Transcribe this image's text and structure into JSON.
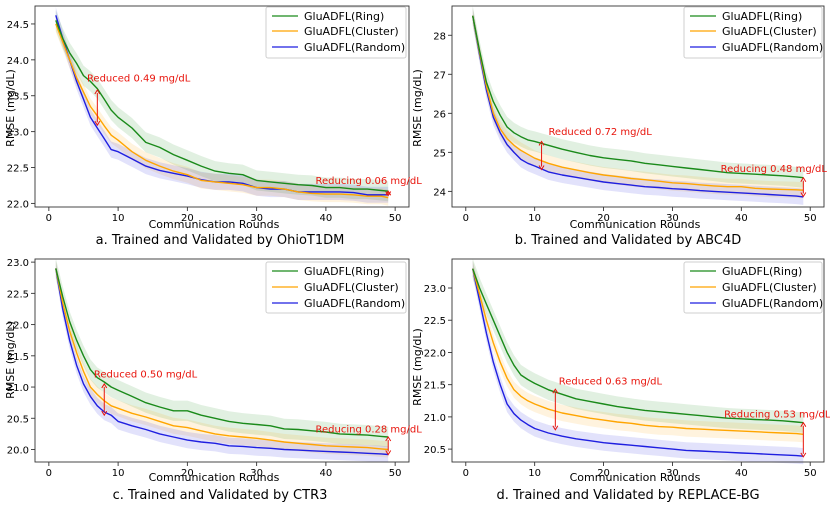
{
  "figure": {
    "x_label": "Communication Rounds",
    "y_label": "RMSE (mg/dL)"
  },
  "legend": {
    "ring": "GluADFL(Ring)",
    "cluster": "GluADFL(Cluster)",
    "random": "GluADFL(Random)"
  },
  "colors": {
    "ring": "#1a8a1a",
    "cluster": "#ffa500",
    "random": "#1f1fe0",
    "annotation": "#e8140c",
    "frame": "#333333"
  },
  "chart_data": [
    {
      "type": "line",
      "title": "a. Trained and Validated by OhioT1DM",
      "xlabel": "Communication Rounds",
      "ylabel": "RMSE (mg/dL)",
      "xlim": [
        -2,
        52
      ],
      "ylim": [
        21.95,
        24.75
      ],
      "xticks": [
        0,
        10,
        20,
        30,
        40,
        50
      ],
      "yticks": [
        22.0,
        22.5,
        23.0,
        23.5,
        24.0,
        24.5
      ],
      "ytick_labels": [
        "22.0",
        "22.5",
        "23.0",
        "23.5",
        "24.0",
        "24.5"
      ],
      "legend_position": "top-right",
      "series": [
        {
          "name": "GluADFL(Ring)",
          "x": [
            1,
            2,
            3,
            4,
            5,
            6,
            7,
            8,
            9,
            10,
            12,
            14,
            16,
            18,
            20,
            22,
            24,
            26,
            28,
            30,
            32,
            34,
            36,
            38,
            40,
            42,
            44,
            46,
            48,
            49
          ],
          "y": [
            24.55,
            24.3,
            24.1,
            23.95,
            23.78,
            23.7,
            23.6,
            23.45,
            23.3,
            23.2,
            23.05,
            22.85,
            22.78,
            22.68,
            22.6,
            22.52,
            22.45,
            22.42,
            22.4,
            22.32,
            22.3,
            22.28,
            22.26,
            22.25,
            22.22,
            22.22,
            22.2,
            22.2,
            22.18,
            22.17
          ]
        },
        {
          "name": "GluADFL(Cluster)",
          "x": [
            1,
            2,
            3,
            4,
            5,
            6,
            7,
            8,
            9,
            10,
            12,
            14,
            16,
            18,
            20,
            22,
            24,
            26,
            28,
            30,
            32,
            34,
            36,
            38,
            40,
            42,
            44,
            46,
            48,
            49
          ],
          "y": [
            24.5,
            24.25,
            24.0,
            23.75,
            23.55,
            23.35,
            23.22,
            23.08,
            22.95,
            22.88,
            22.72,
            22.6,
            22.52,
            22.45,
            22.4,
            22.32,
            22.3,
            22.28,
            22.26,
            22.22,
            22.22,
            22.2,
            22.16,
            22.14,
            22.13,
            22.13,
            22.12,
            22.1,
            22.1,
            22.08
          ]
        },
        {
          "name": "GluADFL(Random)",
          "x": [
            1,
            2,
            3,
            4,
            5,
            6,
            7,
            8,
            9,
            10,
            12,
            14,
            16,
            18,
            20,
            22,
            24,
            26,
            28,
            30,
            32,
            34,
            36,
            38,
            40,
            42,
            44,
            46,
            48,
            49
          ],
          "y": [
            24.62,
            24.3,
            24.0,
            23.7,
            23.45,
            23.2,
            23.05,
            22.9,
            22.75,
            22.72,
            22.62,
            22.52,
            22.46,
            22.42,
            22.38,
            22.33,
            22.3,
            22.3,
            22.28,
            22.22,
            22.2,
            22.2,
            22.16,
            22.16,
            22.16,
            22.16,
            22.15,
            22.12,
            22.12,
            22.12
          ]
        }
      ],
      "annotations": [
        {
          "text": "Reduced 0.49 mg/dL",
          "x": 7,
          "y_top": 23.58,
          "y_bottom": 23.09,
          "text_x": 5.5,
          "text_y": 23.7
        },
        {
          "text": "Reducing 0.06 mg/dL",
          "x": 49,
          "y_top": 22.17,
          "y_bottom": 22.11,
          "text_x": 38.5,
          "text_y": 22.27
        }
      ]
    },
    {
      "type": "line",
      "title": "b. Trained and Validated by ABC4D",
      "xlabel": "Communication Rounds",
      "ylabel": "RMSE (mg/dL)",
      "xlim": [
        -2,
        52
      ],
      "ylim": [
        23.6,
        28.75
      ],
      "xticks": [
        0,
        10,
        20,
        30,
        40,
        50
      ],
      "yticks": [
        24,
        25,
        26,
        27,
        28
      ],
      "ytick_labels": [
        "24",
        "25",
        "26",
        "27",
        "28"
      ],
      "legend_position": "top-right",
      "series": [
        {
          "name": "GluADFL(Ring)",
          "x": [
            1,
            2,
            3,
            4,
            5,
            6,
            7,
            8,
            9,
            10,
            12,
            14,
            16,
            18,
            20,
            22,
            24,
            26,
            28,
            30,
            32,
            34,
            36,
            38,
            40,
            42,
            44,
            46,
            48,
            49
          ],
          "y": [
            28.5,
            27.6,
            26.8,
            26.3,
            25.95,
            25.65,
            25.5,
            25.4,
            25.32,
            25.28,
            25.18,
            25.08,
            25.0,
            24.92,
            24.86,
            24.82,
            24.78,
            24.72,
            24.68,
            24.64,
            24.6,
            24.56,
            24.52,
            24.48,
            24.46,
            24.44,
            24.42,
            24.4,
            24.37,
            24.35
          ]
        },
        {
          "name": "GluADFL(Cluster)",
          "x": [
            1,
            2,
            3,
            4,
            5,
            6,
            7,
            8,
            9,
            10,
            12,
            14,
            16,
            18,
            20,
            22,
            24,
            26,
            28,
            30,
            32,
            34,
            36,
            38,
            40,
            42,
            44,
            46,
            48,
            49
          ],
          "y": [
            28.5,
            27.55,
            26.7,
            26.0,
            25.6,
            25.35,
            25.18,
            25.05,
            24.95,
            24.85,
            24.72,
            24.62,
            24.55,
            24.48,
            24.42,
            24.38,
            24.33,
            24.3,
            24.26,
            24.22,
            24.2,
            24.17,
            24.14,
            24.12,
            24.12,
            24.08,
            24.06,
            24.05,
            24.04,
            24.03
          ]
        },
        {
          "name": "GluADFL(Random)",
          "x": [
            1,
            2,
            3,
            4,
            5,
            6,
            7,
            8,
            9,
            10,
            12,
            14,
            16,
            18,
            20,
            22,
            24,
            26,
            28,
            30,
            32,
            34,
            36,
            38,
            40,
            42,
            44,
            46,
            48,
            49
          ],
          "y": [
            28.5,
            27.5,
            26.6,
            25.9,
            25.5,
            25.2,
            25.0,
            24.82,
            24.72,
            24.65,
            24.5,
            24.42,
            24.36,
            24.3,
            24.24,
            24.2,
            24.16,
            24.12,
            24.1,
            24.07,
            24.05,
            24.02,
            24.0,
            23.98,
            23.96,
            23.94,
            23.92,
            23.9,
            23.88,
            23.86
          ]
        }
      ],
      "annotations": [
        {
          "text": "Reduced 0.72 mg/dL",
          "x": 11,
          "y_top": 25.28,
          "y_bottom": 24.56,
          "text_x": 12,
          "text_y": 25.45
        },
        {
          "text": "Reducing 0.48 mg/dL",
          "x": 49,
          "y_top": 24.35,
          "y_bottom": 23.87,
          "text_x": 37,
          "text_y": 24.5
        }
      ]
    },
    {
      "type": "line",
      "title": "c. Trained and Validated by CTR3",
      "xlabel": "Communication Rounds",
      "ylabel": "RMSE (mg/dL)",
      "xlim": [
        -2,
        52
      ],
      "ylim": [
        19.8,
        23.05
      ],
      "xticks": [
        0,
        10,
        20,
        30,
        40,
        50
      ],
      "yticks": [
        20.0,
        20.5,
        21.0,
        21.5,
        22.0,
        22.5,
        23.0
      ],
      "ytick_labels": [
        "20.0",
        "20.5",
        "21.0",
        "21.5",
        "22.0",
        "22.5",
        "23.0"
      ],
      "legend_position": "top-right",
      "series": [
        {
          "name": "GluADFL(Ring)",
          "x": [
            1,
            2,
            3,
            4,
            5,
            6,
            7,
            8,
            9,
            10,
            12,
            14,
            16,
            18,
            20,
            22,
            24,
            26,
            28,
            30,
            32,
            34,
            36,
            38,
            40,
            42,
            44,
            46,
            48,
            49
          ],
          "y": [
            22.9,
            22.45,
            22.05,
            21.75,
            21.5,
            21.28,
            21.15,
            21.08,
            21.0,
            20.95,
            20.85,
            20.75,
            20.68,
            20.62,
            20.62,
            20.55,
            20.5,
            20.45,
            20.42,
            20.4,
            20.38,
            20.33,
            20.32,
            20.3,
            20.28,
            20.25,
            20.24,
            20.23,
            20.21,
            20.2
          ]
        },
        {
          "name": "GluADFL(Cluster)",
          "x": [
            1,
            2,
            3,
            4,
            5,
            6,
            7,
            8,
            9,
            10,
            12,
            14,
            16,
            18,
            20,
            22,
            24,
            26,
            28,
            30,
            32,
            34,
            36,
            38,
            40,
            42,
            44,
            46,
            48,
            49
          ],
          "y": [
            22.9,
            22.35,
            21.9,
            21.55,
            21.25,
            21.0,
            20.88,
            20.78,
            20.7,
            20.66,
            20.58,
            20.52,
            20.45,
            20.38,
            20.35,
            20.3,
            20.25,
            20.22,
            20.2,
            20.18,
            20.15,
            20.12,
            20.1,
            20.08,
            20.06,
            20.05,
            20.04,
            20.03,
            20.01,
            20.0
          ]
        },
        {
          "name": "GluADFL(Random)",
          "x": [
            1,
            2,
            3,
            4,
            5,
            6,
            7,
            8,
            9,
            10,
            12,
            14,
            16,
            18,
            20,
            22,
            24,
            26,
            28,
            30,
            32,
            34,
            36,
            38,
            40,
            42,
            44,
            46,
            48,
            49
          ],
          "y": [
            22.9,
            22.25,
            21.75,
            21.35,
            21.05,
            20.85,
            20.7,
            20.6,
            20.55,
            20.45,
            20.38,
            20.32,
            20.25,
            20.2,
            20.15,
            20.12,
            20.1,
            20.06,
            20.05,
            20.03,
            20.02,
            20.0,
            19.99,
            19.98,
            19.97,
            19.96,
            19.95,
            19.94,
            19.93,
            19.92
          ]
        }
      ],
      "annotations": [
        {
          "text": "Reduced 0.50 mg/dL",
          "x": 8,
          "y_top": 21.05,
          "y_bottom": 20.55,
          "text_x": 6.5,
          "text_y": 21.15
        },
        {
          "text": "Reducing 0.28 mg/dL",
          "x": 49,
          "y_top": 20.2,
          "y_bottom": 19.92,
          "text_x": 38.5,
          "text_y": 20.27
        }
      ]
    },
    {
      "type": "line",
      "title": "d. Trained and Validated by REPLACE-BG",
      "xlabel": "Communication Rounds",
      "ylabel": "RMSE (mg/dL)",
      "xlim": [
        -2,
        52
      ],
      "ylim": [
        20.3,
        23.45
      ],
      "xticks": [
        0,
        10,
        20,
        30,
        40,
        50
      ],
      "yticks": [
        20.5,
        21.0,
        21.5,
        22.0,
        22.5,
        23.0
      ],
      "ytick_labels": [
        "20.5",
        "21.0",
        "21.5",
        "22.0",
        "22.5",
        "23.0"
      ],
      "legend_position": "top-right",
      "series": [
        {
          "name": "GluADFL(Ring)",
          "x": [
            1,
            2,
            3,
            4,
            5,
            6,
            7,
            8,
            9,
            10,
            12,
            14,
            16,
            18,
            20,
            22,
            24,
            26,
            28,
            30,
            32,
            34,
            36,
            38,
            40,
            42,
            44,
            46,
            48,
            49
          ],
          "y": [
            23.3,
            23.0,
            22.75,
            22.5,
            22.25,
            22.0,
            21.8,
            21.65,
            21.58,
            21.52,
            21.42,
            21.35,
            21.28,
            21.24,
            21.2,
            21.16,
            21.13,
            21.1,
            21.08,
            21.06,
            21.04,
            21.02,
            21.0,
            20.98,
            20.97,
            20.96,
            20.95,
            20.94,
            20.92,
            20.91
          ]
        },
        {
          "name": "GluADFL(Cluster)",
          "x": [
            1,
            2,
            3,
            4,
            5,
            6,
            7,
            8,
            9,
            10,
            12,
            14,
            16,
            18,
            20,
            22,
            24,
            26,
            28,
            30,
            32,
            34,
            36,
            38,
            40,
            42,
            44,
            46,
            48,
            49
          ],
          "y": [
            23.3,
            22.9,
            22.5,
            22.15,
            21.85,
            21.6,
            21.42,
            21.32,
            21.25,
            21.2,
            21.12,
            21.06,
            21.02,
            20.98,
            20.95,
            20.92,
            20.9,
            20.87,
            20.85,
            20.84,
            20.82,
            20.81,
            20.8,
            20.79,
            20.78,
            20.77,
            20.76,
            20.75,
            20.74,
            20.73
          ]
        },
        {
          "name": "GluADFL(Random)",
          "x": [
            1,
            2,
            3,
            4,
            5,
            6,
            7,
            8,
            9,
            10,
            12,
            14,
            16,
            18,
            20,
            22,
            24,
            26,
            28,
            30,
            32,
            34,
            36,
            38,
            40,
            42,
            44,
            46,
            48,
            49
          ],
          "y": [
            23.3,
            22.8,
            22.3,
            21.85,
            21.5,
            21.2,
            21.05,
            20.95,
            20.88,
            20.82,
            20.75,
            20.7,
            20.66,
            20.63,
            20.6,
            20.58,
            20.56,
            20.54,
            20.52,
            20.5,
            20.48,
            20.47,
            20.46,
            20.45,
            20.44,
            20.43,
            20.42,
            20.41,
            20.4,
            20.39
          ]
        }
      ],
      "annotations": [
        {
          "text": "Reduced 0.63 mg/dL",
          "x": 13,
          "y_top": 21.43,
          "y_bottom": 20.8,
          "text_x": 13.5,
          "text_y": 21.5
        },
        {
          "text": "Reducing 0.53 mg/dL",
          "x": 49,
          "y_top": 20.91,
          "y_bottom": 20.38,
          "text_x": 37.5,
          "text_y": 20.99
        }
      ]
    }
  ]
}
